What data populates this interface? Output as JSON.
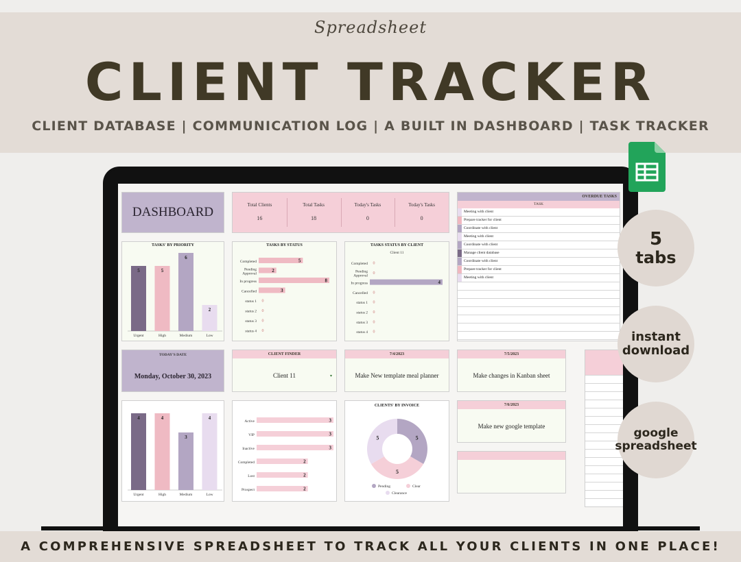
{
  "banner": {
    "script": "Spreadsheet",
    "title": "CLIENT TRACKER",
    "subtitle": "CLIENT DATABASE | COMMUNICATION LOG | A BUILT IN DASHBOARD | TASK TRACKER"
  },
  "badges": {
    "tabs_num": "5",
    "tabs_label": "tabs",
    "instant_line1": "instant",
    "instant_line2": "download",
    "google_line1": "google",
    "google_line2": "spreadsheet"
  },
  "footer": "A COMPREHENSIVE SPREADSHEET TO TRACK ALL YOUR CLIENTS IN ONE PLACE!",
  "colors": {
    "purple_dark": "#7a6a87",
    "pink": "#f0b7c0",
    "lavender": "#b3a6c3",
    "lavender_light": "#e8dcef",
    "bar_pink": "#efbac3",
    "sheets_green": "#22a45a"
  },
  "dashboard": {
    "title": "DASHBOARD",
    "kpis": [
      {
        "label": "Total Clients",
        "value": "16"
      },
      {
        "label": "Total Tasks",
        "value": "18"
      },
      {
        "label": "Today's Tasks",
        "value": "0"
      },
      {
        "label": "Today's Tasks",
        "value": "0"
      }
    ],
    "overdue": {
      "title": "OVERDUE TASKS",
      "column": "TASK",
      "rows": [
        "Meeting with client",
        "Prepare tracker for client",
        "Coordinate with client",
        "Meeting with client",
        "Coordinate with client",
        "Manage client database",
        "Coordinate with client",
        "Prepare tracker for client",
        "Meeting with client"
      ]
    },
    "today": {
      "label": "TODAY'S DATE",
      "value": "Monday, October 30, 2023"
    },
    "finder": {
      "label": "CLIENT FINDER",
      "value": "Client 11"
    },
    "task_cards": [
      {
        "date": "7/4/2023",
        "text": "Make New template meal planner"
      },
      {
        "date": "7/5/2023",
        "text": "Make changes in Kanban sheet"
      },
      {
        "date": "7/6/2023",
        "text": "Make new google template"
      }
    ]
  },
  "chart_data": [
    {
      "type": "bar",
      "title": "TASKS' BY PRIORITY",
      "categories": [
        "Urgent",
        "High",
        "Medium",
        "Low"
      ],
      "values": [
        5,
        5,
        6,
        2
      ],
      "ylim": [
        0,
        6
      ]
    },
    {
      "type": "bar",
      "orientation": "horizontal",
      "title": "TASKS BY STATUS",
      "categories": [
        "Completed",
        "Pending Approval",
        "In progress",
        "Cancelled",
        "status 1",
        "status 2",
        "status 3",
        "status 4"
      ],
      "values": [
        5,
        2,
        8,
        3,
        0,
        0,
        0,
        0
      ],
      "xlim": [
        0,
        8
      ]
    },
    {
      "type": "bar",
      "orientation": "horizontal",
      "title": "TASKS STATUS BY CLIENT",
      "subtitle": "Client 11",
      "categories": [
        "Completed",
        "Pending Approval",
        "In progress",
        "Cancelled",
        "status 1",
        "status 2",
        "status 3",
        "status 4"
      ],
      "values": [
        0,
        0,
        4,
        0,
        0,
        0,
        0,
        0
      ],
      "xlim": [
        0,
        4
      ]
    },
    {
      "type": "bar",
      "title": "",
      "categories": [
        "Urgent",
        "High",
        "Medium",
        "Low"
      ],
      "values": [
        4,
        4,
        3,
        4
      ],
      "ylim": [
        0,
        4
      ]
    },
    {
      "type": "bar",
      "orientation": "horizontal",
      "title": "",
      "categories": [
        "Active",
        "VIP",
        "Inactive",
        "Completed",
        "Lost",
        "Prospect"
      ],
      "values": [
        3,
        3,
        3,
        2,
        2,
        2
      ],
      "xlim": [
        0,
        3
      ]
    },
    {
      "type": "pie",
      "title": "CLIENTS' BY INVOICE",
      "categories": [
        "Pending",
        "Clear",
        "Clearance"
      ],
      "values": [
        5,
        5,
        5
      ],
      "legend": "bottom"
    }
  ]
}
